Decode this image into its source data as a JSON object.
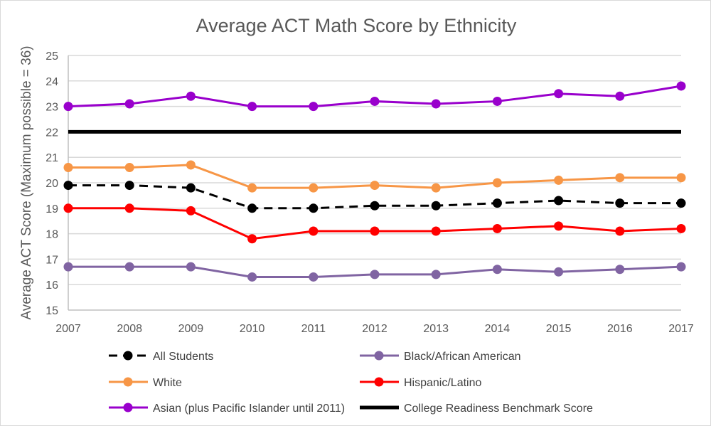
{
  "chart_data": {
    "type": "line",
    "title": "Average ACT Math Score by Ethnicity",
    "xlabel": "",
    "ylabel": "Average ACT Score (Maximum possible = 36)",
    "ylim": [
      15,
      25
    ],
    "yticks": [
      "15",
      "16",
      "17",
      "18",
      "19",
      "20",
      "21",
      "22",
      "23",
      "24",
      "25"
    ],
    "grid": true,
    "legend_position": "bottom",
    "x": [
      "2007",
      "2008",
      "2009",
      "2010",
      "2011",
      "2012",
      "2013",
      "2014",
      "2015",
      "2016",
      "2017"
    ],
    "series": [
      {
        "name": "All Students",
        "color": "#000000",
        "dashed": true,
        "markers": true,
        "values": [
          19.9,
          19.9,
          19.8,
          19.0,
          19.0,
          19.1,
          19.1,
          19.2,
          19.3,
          19.2,
          19.2
        ]
      },
      {
        "name": "Black/African American",
        "color": "#8064a2",
        "dashed": false,
        "markers": true,
        "values": [
          16.7,
          16.7,
          16.7,
          16.3,
          16.3,
          16.4,
          16.4,
          16.6,
          16.5,
          16.6,
          16.7
        ]
      },
      {
        "name": "White",
        "color": "#f79646",
        "dashed": false,
        "markers": true,
        "values": [
          20.6,
          20.6,
          20.7,
          19.8,
          19.8,
          19.9,
          19.8,
          20.0,
          20.1,
          20.2,
          20.2
        ]
      },
      {
        "name": "Hispanic/Latino",
        "color": "#ff0000",
        "dashed": false,
        "markers": true,
        "values": [
          19.0,
          19.0,
          18.9,
          17.8,
          18.1,
          18.1,
          18.1,
          18.2,
          18.3,
          18.1,
          18.2
        ]
      },
      {
        "name": "Asian (plus Pacific Islander until 2011)",
        "color": "#9900cc",
        "dashed": false,
        "markers": true,
        "values": [
          23.0,
          23.1,
          23.4,
          23.0,
          23.0,
          23.2,
          23.1,
          23.2,
          23.5,
          23.4,
          23.8
        ]
      },
      {
        "name": "College Readiness Benchmark Score",
        "color": "#000000",
        "dashed": false,
        "markers": false,
        "thick": true,
        "values": [
          22,
          22,
          22,
          22,
          22,
          22,
          22,
          22,
          22,
          22,
          22
        ]
      }
    ]
  }
}
